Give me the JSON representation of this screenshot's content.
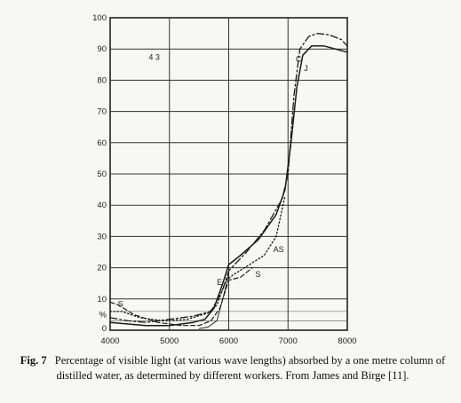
{
  "chart_data": {
    "type": "line",
    "xlim": [
      4000,
      8000
    ],
    "ylim": [
      0,
      100
    ],
    "x_ticks": [
      "4000",
      "5000",
      "6000",
      "7000",
      "8000"
    ],
    "y_ticks": [
      "0",
      "10",
      "20",
      "30",
      "40",
      "50",
      "60",
      "70",
      "80",
      "90",
      "100"
    ],
    "y_extra_tick": "%",
    "grid": true,
    "series": [
      {
        "name": "J",
        "style": "solid",
        "x": [
          4000,
          4300,
          4600,
          5000,
          5400,
          5600,
          5750,
          5900,
          6000,
          6200,
          6500,
          6800,
          6950,
          7050,
          7150,
          7250,
          7400,
          7600,
          7800,
          8000
        ],
        "values": [
          2.5,
          2,
          1.5,
          1.5,
          2.5,
          3.5,
          7,
          15,
          21,
          24,
          29,
          37,
          45,
          60,
          78,
          88,
          91,
          91,
          90,
          89
        ]
      },
      {
        "name": "C",
        "style": "dashdot",
        "x": [
          4000,
          4300,
          4600,
          5000,
          5400,
          5700,
          5900,
          6000,
          6300,
          6600,
          6900,
          7000,
          7100,
          7200,
          7350,
          7500,
          7700,
          7900,
          8000
        ],
        "values": [
          4,
          3,
          2.5,
          3.5,
          4.5,
          6,
          13,
          19,
          25,
          32,
          42,
          50,
          75,
          90,
          94,
          95,
          94.5,
          93,
          91
        ]
      },
      {
        "name": "AS",
        "style": "dotted",
        "x": [
          4000,
          4200,
          4500,
          4900,
          5300,
          5650,
          5800,
          5950,
          6100,
          6350,
          6600,
          6800,
          6950
        ],
        "values": [
          6,
          6,
          4,
          3,
          3.5,
          5.5,
          8,
          16,
          18,
          21,
          24,
          30,
          43
        ]
      },
      {
        "name": "S",
        "style": "dashed",
        "x": [
          4000,
          4150,
          4400,
          4800,
          5200,
          5500,
          5700,
          5850,
          6000,
          6200,
          6400
        ],
        "values": [
          9,
          8,
          5,
          2.5,
          1.5,
          1.5,
          3,
          7,
          16,
          17,
          20
        ]
      },
      {
        "name": "E",
        "style": "thin",
        "x": [
          5500,
          5650,
          5800,
          5900,
          6000
        ],
        "values": [
          0.5,
          1,
          3,
          10,
          18
        ]
      }
    ],
    "labels": [
      "C",
      "J",
      "AS",
      "S",
      "E",
      "S"
    ],
    "stray_marks": "4 3"
  },
  "caption": {
    "label": "Fig. 7",
    "text": "Percentage of visible light (at various wave lengths) absorbed by a one metre column of distilled water, as determined by different workers. From James and Birge [11]."
  }
}
